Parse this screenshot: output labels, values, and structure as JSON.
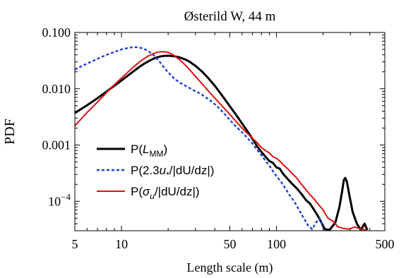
{
  "chart_data": {
    "type": "line",
    "title": "Østerild W, 44 m",
    "xlabel": "Length scale (m)",
    "ylabel": "PDF",
    "xscale": "log",
    "yscale": "log",
    "xlim": [
      5,
      500
    ],
    "ylim": [
      3e-05,
      0.1
    ],
    "grid": false,
    "legend_position": "lower-left",
    "x_ticks": [
      {
        "value": 5,
        "label": "5"
      },
      {
        "value": 10,
        "label": "10"
      },
      {
        "value": 50,
        "label": "50"
      },
      {
        "value": 100,
        "label": "100"
      },
      {
        "value": 500,
        "label": "500"
      }
    ],
    "y_ticks": [
      {
        "value": 0.1,
        "label": "0.100"
      },
      {
        "value": 0.01,
        "label": "0.010"
      },
      {
        "value": 0.001,
        "label": "0.001"
      },
      {
        "value": 0.0001,
        "label": "10",
        "exponent": "−4"
      }
    ],
    "series": [
      {
        "name": "P(L_MM)",
        "legend_parts": [
          {
            "t": "P("
          },
          {
            "t": "L",
            "style": "italic"
          },
          {
            "t": "MM",
            "style": "sub"
          },
          {
            "t": ")"
          }
        ],
        "color": "#000000",
        "dash": "solid",
        "width": 3,
        "points": [
          [
            5,
            0.0037
          ],
          [
            6,
            0.0051
          ],
          [
            7,
            0.0068
          ],
          [
            8,
            0.0089
          ],
          [
            9,
            0.0113
          ],
          [
            10,
            0.014
          ],
          [
            11,
            0.0172
          ],
          [
            12,
            0.0206
          ],
          [
            13,
            0.0243
          ],
          [
            14,
            0.0278
          ],
          [
            15,
            0.031
          ],
          [
            16,
            0.034
          ],
          [
            17,
            0.0362
          ],
          [
            18,
            0.0377
          ],
          [
            19,
            0.0385
          ],
          [
            20,
            0.0386
          ],
          [
            21,
            0.0384
          ],
          [
            22,
            0.0378
          ],
          [
            24,
            0.0357
          ],
          [
            26,
            0.0328
          ],
          [
            28,
            0.0292
          ],
          [
            30,
            0.0255
          ],
          [
            33,
            0.0203
          ],
          [
            36,
            0.0158
          ],
          [
            40,
            0.0113
          ],
          [
            45,
            0.0073
          ],
          [
            50,
            0.0049
          ],
          [
            55,
            0.0034
          ],
          [
            60,
            0.0024
          ],
          [
            65,
            0.00175
          ],
          [
            70,
            0.00128
          ],
          [
            75,
            0.00095
          ],
          [
            80,
            0.00075
          ],
          [
            85,
            0.00062
          ],
          [
            90,
            0.00052
          ],
          [
            95,
            0.00048
          ],
          [
            100,
            0.0004
          ],
          [
            105,
            0.00038
          ],
          [
            110,
            0.00031
          ],
          [
            118,
            0.00025
          ],
          [
            125,
            0.00021
          ],
          [
            135,
            0.00017
          ],
          [
            145,
            0.000135
          ],
          [
            155,
            0.000105
          ],
          [
            165,
            9e-05
          ],
          [
            175,
            7e-05
          ],
          [
            185,
            5.5e-05
          ],
          [
            195,
            4.2e-05
          ],
          [
            205,
            3.2e-05
          ],
          [
            220,
            3.1e-05
          ],
          [
            240,
            4.2e-05
          ],
          [
            255,
            8e-05
          ],
          [
            265,
            0.00015
          ],
          [
            272,
            0.00024
          ],
          [
            278,
            0.00026
          ],
          [
            285,
            0.00022
          ],
          [
            295,
            0.00013
          ],
          [
            310,
            6.5e-05
          ],
          [
            330,
            4e-05
          ],
          [
            350,
            3.1e-05
          ],
          [
            370,
            4e-05
          ],
          [
            385,
            3.1e-05
          ]
        ]
      },
      {
        "name": "P(2.3u*/|dU/dz|)",
        "legend_parts": [
          {
            "t": "P(2.3"
          },
          {
            "t": "u",
            "style": "italic"
          },
          {
            "t": "*",
            "style": "sub"
          },
          {
            "t": "/|dU/dz|)"
          }
        ],
        "color": "#1f3fd9",
        "dash": "dotted",
        "width": 2.4,
        "points": [
          [
            5,
            0.022
          ],
          [
            6,
            0.028
          ],
          [
            7,
            0.034
          ],
          [
            8,
            0.04
          ],
          [
            9,
            0.045
          ],
          [
            10,
            0.05
          ],
          [
            11,
            0.053
          ],
          [
            12,
            0.055
          ],
          [
            13,
            0.054
          ],
          [
            14,
            0.051
          ],
          [
            15,
            0.046
          ],
          [
            16,
            0.04
          ],
          [
            17,
            0.034
          ],
          [
            18,
            0.028
          ],
          [
            19,
            0.023
          ],
          [
            20,
            0.0195
          ],
          [
            22,
            0.015
          ],
          [
            24,
            0.0126
          ],
          [
            26,
            0.0112
          ],
          [
            28,
            0.01
          ],
          [
            30,
            0.009
          ],
          [
            32,
            0.0083
          ],
          [
            35,
            0.007
          ],
          [
            38,
            0.006
          ],
          [
            42,
            0.0047
          ],
          [
            46,
            0.0036
          ],
          [
            50,
            0.0028
          ],
          [
            55,
            0.0021
          ],
          [
            60,
            0.00168
          ],
          [
            65,
            0.00133
          ],
          [
            70,
            0.00106
          ],
          [
            75,
            0.00082
          ],
          [
            80,
            0.00066
          ],
          [
            85,
            0.00052
          ],
          [
            90,
            0.00043
          ],
          [
            95,
            0.00034
          ],
          [
            100,
            0.00028
          ],
          [
            110,
            0.0002
          ],
          [
            120,
            0.000135
          ],
          [
            130,
            0.0001
          ],
          [
            140,
            7e-05
          ],
          [
            150,
            5e-05
          ],
          [
            160,
            3.7e-05
          ],
          [
            170,
            3.2e-05
          ],
          [
            180,
            4.2e-05
          ],
          [
            190,
            5e-05
          ],
          [
            200,
            3.5e-05
          ]
        ]
      },
      {
        "name": "P(σu/|dU/dz|)",
        "legend_parts": [
          {
            "t": "P("
          },
          {
            "t": "σ",
            "style": "italic"
          },
          {
            "t": "u",
            "style": "sub-italic"
          },
          {
            "t": "/|dU/dz|)"
          }
        ],
        "color": "#e01010",
        "dash": "solid",
        "width": 2,
        "points": [
          [
            5,
            0.0022
          ],
          [
            6,
            0.0038
          ],
          [
            7,
            0.0058
          ],
          [
            8,
            0.0085
          ],
          [
            9,
            0.0118
          ],
          [
            10,
            0.0155
          ],
          [
            11,
            0.0198
          ],
          [
            12,
            0.0246
          ],
          [
            13,
            0.0296
          ],
          [
            14,
            0.0344
          ],
          [
            15,
            0.0386
          ],
          [
            16,
            0.042
          ],
          [
            17,
            0.0443
          ],
          [
            18,
            0.0455
          ],
          [
            19,
            0.0454
          ],
          [
            20,
            0.044
          ],
          [
            21,
            0.0416
          ],
          [
            22,
            0.0384
          ],
          [
            24,
            0.0319
          ],
          [
            26,
            0.0258
          ],
          [
            28,
            0.0206
          ],
          [
            30,
            0.0166
          ],
          [
            33,
            0.0124
          ],
          [
            36,
            0.0094
          ],
          [
            40,
            0.0068
          ],
          [
            45,
            0.0048
          ],
          [
            50,
            0.0035
          ],
          [
            55,
            0.0026
          ],
          [
            60,
            0.002
          ],
          [
            65,
            0.0016
          ],
          [
            70,
            0.00132
          ],
          [
            75,
            0.0011
          ],
          [
            80,
            0.0009
          ],
          [
            85,
            0.0008
          ],
          [
            90,
            0.00072
          ],
          [
            95,
            0.00062
          ],
          [
            100,
            0.00058
          ],
          [
            105,
            0.00052
          ],
          [
            110,
            0.00045
          ],
          [
            118,
            0.00038
          ],
          [
            125,
            0.00032
          ],
          [
            135,
            0.00026
          ],
          [
            145,
            0.0002
          ],
          [
            155,
            0.00016
          ],
          [
            165,
            0.00013
          ],
          [
            175,
            0.00011
          ],
          [
            185,
            9e-05
          ],
          [
            200,
            7e-05
          ],
          [
            215,
            5e-05
          ],
          [
            230,
            4.5e-05
          ],
          [
            250,
            3.5e-05
          ],
          [
            270,
            3.3e-05
          ],
          [
            290,
            3.2e-05
          ],
          [
            320,
            3.5e-05
          ],
          [
            350,
            3.2e-05
          ],
          [
            380,
            3.1e-05
          ]
        ]
      }
    ]
  }
}
